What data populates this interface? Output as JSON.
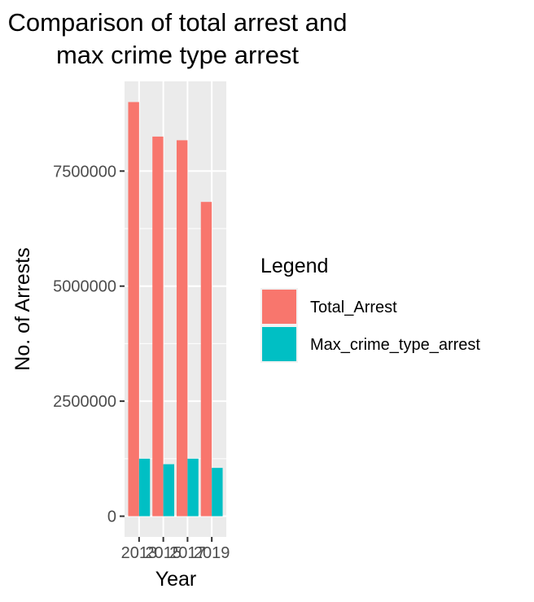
{
  "chart_data": {
    "type": "bar",
    "title_lines": [
      "Comparison of total arrest and",
      "max crime type arrest"
    ],
    "xlabel": "Year",
    "ylabel": "No. of Arrests",
    "categories": [
      "2013",
      "2015",
      "2017",
      "2019"
    ],
    "series": [
      {
        "name": "Total_Arrest",
        "color": "#f8766d",
        "values": [
          9000000,
          8250000,
          8170000,
          6830000
        ]
      },
      {
        "name": "Max_crime_type_arrest",
        "color": "#00bfc4",
        "values": [
          1250000,
          1130000,
          1250000,
          1050000
        ]
      }
    ],
    "yticks": [
      0,
      2500000,
      5000000,
      7500000
    ],
    "ytick_labels": [
      "0",
      "2500000",
      "5000000",
      "7500000"
    ],
    "ylim": [
      -450000,
      9450000
    ],
    "legend": {
      "title": "Legend",
      "placement": "right"
    },
    "panel_background": "#ebebeb",
    "grid": true
  }
}
